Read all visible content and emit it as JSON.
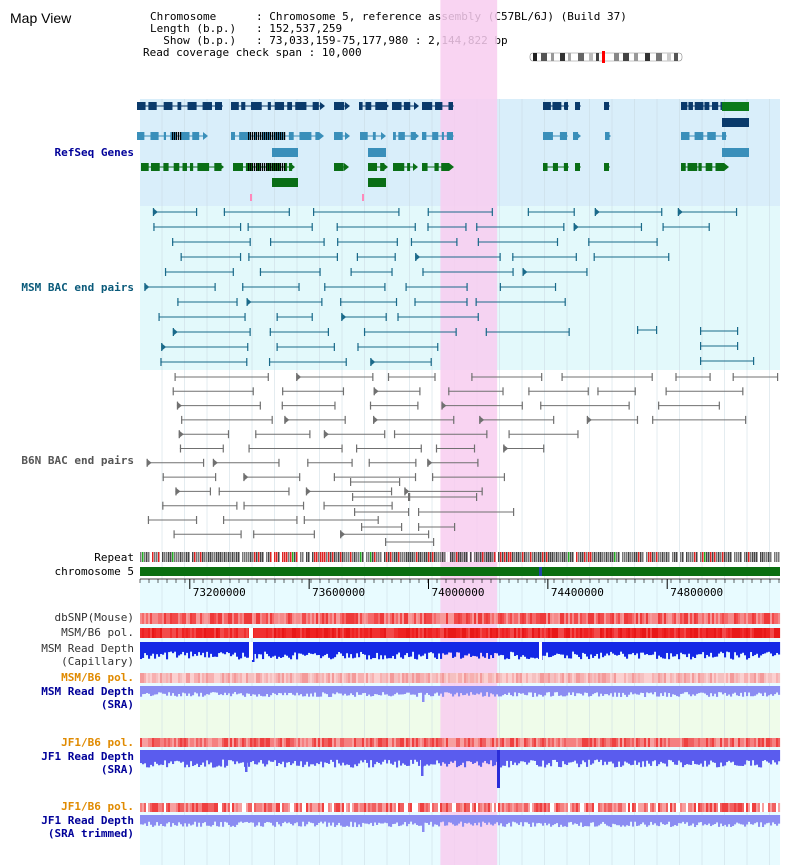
{
  "page": {
    "title": "Map View"
  },
  "header": {
    "chromosome_key": "Chromosome      ",
    "chromosome_val": "Chromosome 5, reference assembly (C57BL/6J) (Build 37)",
    "length_key": "Length (b.p.)   ",
    "length_val": "152,537,259",
    "show_key": "  Show (b.p.)   ",
    "show_val": "73,033,159-75,177,980 : 2,144,822 bp",
    "coverage_key": "Read coverage check span",
    "coverage_val": "10,000"
  },
  "tracks": {
    "refseq": "RefSeq Genes",
    "msm_bac": "MSM BAC end pairs",
    "b6n_bac": "B6N BAC end pairs",
    "repeat": "Repeat",
    "chromosome": "chromosome 5",
    "dbsnp": "dbSNP(Mouse)",
    "msm_b6_pol": "MSM/B6 pol.",
    "msm_depth_cap_1": "MSM Read Depth",
    "msm_depth_cap_2": "(Capillary)",
    "msm_b6_pol2": "MSM/B6 pol.",
    "msm_depth_sra_1": "MSM Read Depth",
    "msm_depth_sra_2": "(SRA)",
    "jf1_b6_pol": "JF1/B6 pol.",
    "jf1_depth_sra_1": "JF1 Read Depth",
    "jf1_depth_sra_2": "(SRA)",
    "jf1_b6_pol2": "JF1/B6 pol.",
    "jf1_depth_trim_1": "JF1 Read Depth",
    "jf1_depth_trim_2": "(SRA trimmed)"
  },
  "axis": {
    "ticks": [
      {
        "label": "73200000",
        "value": 73200000
      },
      {
        "label": "73600000",
        "value": 73600000
      },
      {
        "label": "74000000",
        "value": 74000000
      },
      {
        "label": "74400000",
        "value": 74400000
      },
      {
        "label": "74800000",
        "value": 74800000
      }
    ],
    "range": [
      73033159,
      75177980
    ]
  },
  "highlight": {
    "start": 74060000,
    "end": 74210000
  },
  "colors": {
    "refseq_bg": "#d9eefa",
    "msm_bg": "#e3f9fb",
    "b6n_bg": "#ffffff",
    "lower_bg": "#e8fbff",
    "highlight": "#f8cdf0",
    "gene_dark": "#0a3a6b",
    "gene_mid": "#3a8fba",
    "gene_green": "#0a6e16",
    "msm_line": "#1a6a8a",
    "b6n_line": "#707070",
    "label_blue": "#000099",
    "label_teal": "#0a5a7a",
    "label_gray": "#555555",
    "label_orange": "#e08a00"
  }
}
